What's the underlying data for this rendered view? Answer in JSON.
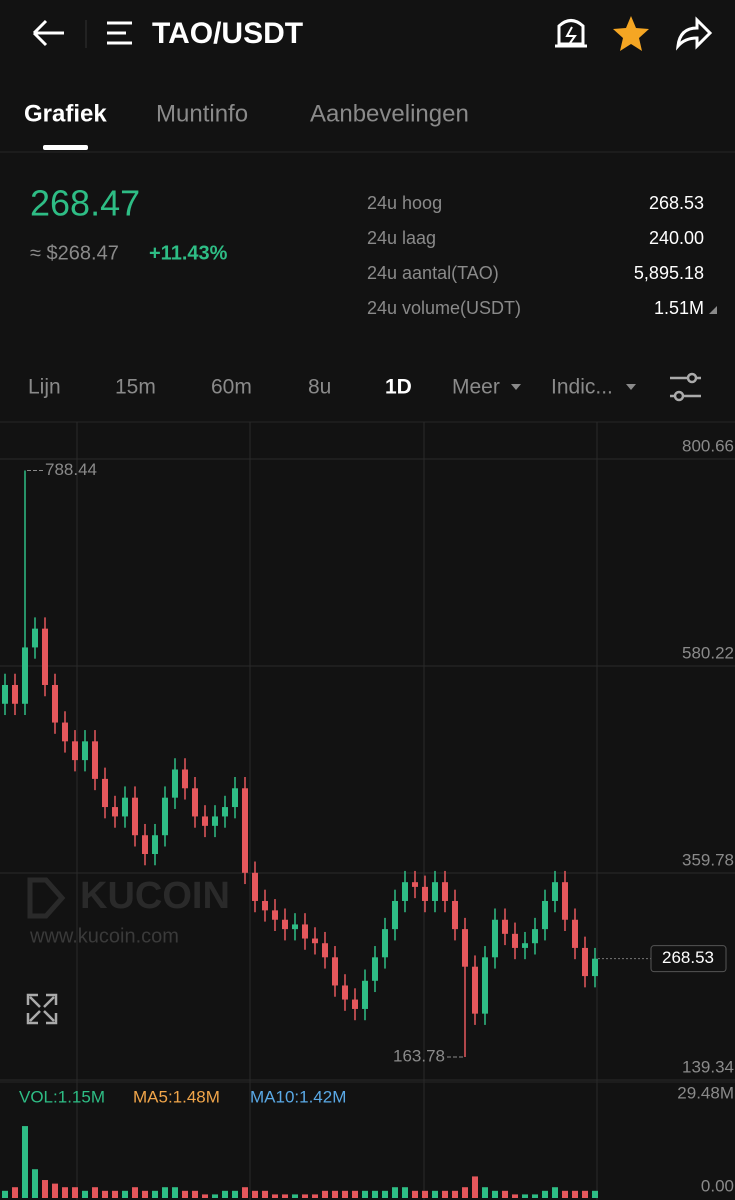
{
  "header": {
    "title": "TAO/USDT"
  },
  "tabs": [
    "Grafiek",
    "Muntinfo",
    "Aanbevelingen"
  ],
  "ticker": {
    "price": "268.47",
    "usd": "≈ $268.47",
    "change": "+11.43%",
    "stats": [
      {
        "label": "24u hoog",
        "value": "268.53"
      },
      {
        "label": "24u laag",
        "value": "240.00"
      },
      {
        "label": "24u aantal(TAO)",
        "value": "5,895.18"
      },
      {
        "label": "24u volume(USDT)",
        "value": "1.51M"
      }
    ]
  },
  "intervals": [
    "Lijn",
    "15m",
    "60m",
    "8u",
    "1D",
    "Meer",
    "Indic..."
  ],
  "watermark": {
    "brand": "KUCOIN",
    "url": "www.kucoin.com"
  },
  "chart_data": {
    "type": "candlestick",
    "open": [
      540,
      560,
      540,
      600,
      620,
      560,
      520,
      500,
      480,
      500,
      460,
      430,
      420,
      440,
      400,
      380,
      400,
      440,
      470,
      450,
      420,
      410,
      420,
      430,
      450,
      360,
      330,
      320,
      310,
      300,
      305,
      290,
      285,
      270,
      240,
      225,
      215,
      245,
      270,
      300,
      330,
      350,
      345,
      330,
      350,
      330,
      300,
      260,
      210,
      270,
      310,
      295,
      280,
      285,
      300,
      330,
      350,
      310,
      280,
      250
    ],
    "high": [
      572,
      572,
      788.44,
      632,
      632,
      572,
      532,
      512,
      512,
      512,
      472,
      442,
      452,
      452,
      412,
      412,
      452,
      482,
      482,
      462,
      432,
      432,
      442,
      462,
      462,
      372,
      342,
      332,
      322,
      317,
      317,
      302,
      297,
      282,
      252,
      237,
      257,
      282,
      312,
      342,
      362,
      362,
      357,
      362,
      362,
      342,
      312,
      272,
      282,
      322,
      322,
      307,
      297,
      312,
      342,
      362,
      362,
      322,
      292,
      280
    ],
    "low": [
      528,
      528,
      528,
      588,
      548,
      508,
      488,
      468,
      468,
      448,
      418,
      408,
      408,
      388,
      368,
      368,
      388,
      428,
      438,
      408,
      398,
      398,
      408,
      418,
      348,
      318,
      308,
      298,
      288,
      288,
      278,
      273,
      258,
      228,
      213,
      203,
      203,
      233,
      258,
      288,
      318,
      333,
      318,
      318,
      318,
      288,
      163.78,
      198,
      198,
      258,
      283,
      268,
      268,
      273,
      288,
      318,
      298,
      268,
      238,
      238
    ],
    "close": [
      560,
      540,
      600,
      620,
      560,
      520,
      500,
      480,
      500,
      460,
      430,
      420,
      440,
      400,
      380,
      400,
      440,
      470,
      450,
      420,
      410,
      420,
      430,
      450,
      360,
      330,
      320,
      310,
      300,
      305,
      290,
      285,
      270,
      240,
      225,
      215,
      245,
      270,
      300,
      330,
      350,
      345,
      330,
      350,
      330,
      300,
      260,
      210,
      270,
      310,
      295,
      280,
      285,
      300,
      330,
      350,
      310,
      280,
      250,
      268.53
    ],
    "ylim": [
      139.34,
      800.66
    ],
    "yticks": [
      139.34,
      359.78,
      580.22,
      800.66
    ],
    "up_color": "#2ebd85",
    "down_color": "#e5575c",
    "high_marker": 788.44,
    "low_marker": 163.78,
    "last_price": 268.53,
    "volume_legend": [
      {
        "text": "VOL:1.15M",
        "color": "#2ebd85"
      },
      {
        "text": "MA5:1.48M",
        "color": "#f0a54a"
      },
      {
        "text": "MA10:1.42M",
        "color": "#5aa9e6"
      }
    ],
    "volume": [
      2,
      3,
      20,
      8,
      5,
      4,
      3,
      3,
      2,
      3,
      2,
      2,
      2,
      3,
      2,
      2,
      3,
      3,
      2,
      2,
      1,
      1,
      2,
      2,
      3,
      2,
      2,
      1,
      1,
      1,
      1,
      1,
      2,
      2,
      2,
      2,
      2,
      2,
      2,
      3,
      3,
      2,
      2,
      2,
      2,
      2,
      3,
      6,
      3,
      2,
      2,
      1,
      1,
      1,
      2,
      3,
      2,
      2,
      2,
      2
    ],
    "vol_ylim": [
      0,
      29.48
    ],
    "vol_yticks": [
      {
        "value": 0,
        "label": "0.00"
      },
      {
        "value": 29.48,
        "label": "29.48M"
      }
    ]
  }
}
